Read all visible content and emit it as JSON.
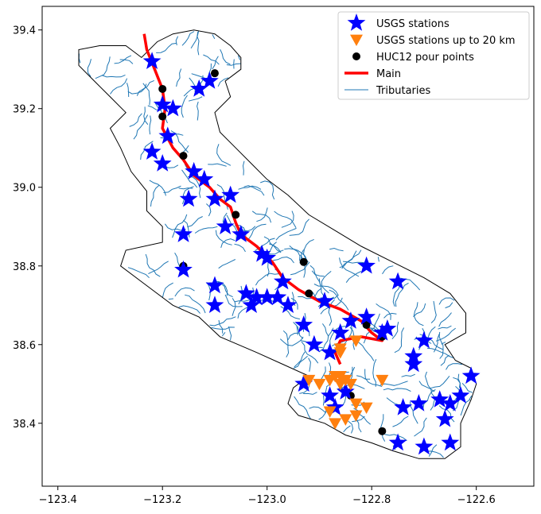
{
  "chart_data": {
    "type": "scatter",
    "xlim": [
      -123.43,
      -122.49
    ],
    "ylim": [
      38.24,
      39.46
    ],
    "x_ticks": [
      -123.4,
      -123.2,
      -123.0,
      -122.8,
      -122.6
    ],
    "y_ticks": [
      38.4,
      38.6,
      38.8,
      39.0,
      39.2,
      39.4
    ],
    "x_tick_labels": [
      "−123.4",
      "−123.2",
      "−123.0",
      "−122.8",
      "−122.6"
    ],
    "y_tick_labels": [
      "38.4",
      "38.6",
      "38.8",
      "39.0",
      "39.2",
      "39.4"
    ],
    "grid": false,
    "legend_position": "top-right",
    "legend": [
      {
        "label": "USGS stations",
        "marker": "star",
        "color": "#0000ff"
      },
      {
        "label": "USGS stations up to 20 km",
        "marker": "triangle-down",
        "color": "#ff7f0e"
      },
      {
        "label": "HUC12 pour points",
        "marker": "circle",
        "color": "#000000"
      },
      {
        "label": "Main",
        "marker": "line",
        "color": "#ff0000"
      },
      {
        "label": "Tributaries",
        "marker": "thin-line",
        "color": "#1f77b4"
      }
    ],
    "colors": {
      "stations": "#0000ff",
      "near": "#ff7f0e",
      "pour": "#000000",
      "main": "#ff0000",
      "tributaries": "#1f77b4",
      "boundary": "#000000"
    },
    "basin_boundary": [
      [
        -123.32,
        39.36
      ],
      [
        -123.27,
        39.36
      ],
      [
        -123.24,
        39.33
      ],
      [
        -123.21,
        39.37
      ],
      [
        -123.18,
        39.39
      ],
      [
        -123.14,
        39.4
      ],
      [
        -123.1,
        39.39
      ],
      [
        -123.07,
        39.36
      ],
      [
        -123.05,
        39.33
      ],
      [
        -123.05,
        39.3
      ],
      [
        -123.08,
        39.27
      ],
      [
        -123.07,
        39.23
      ],
      [
        -123.1,
        39.19
      ],
      [
        -123.09,
        39.14
      ],
      [
        -123.06,
        39.1
      ],
      [
        -123.03,
        39.06
      ],
      [
        -123.0,
        39.02
      ],
      [
        -122.96,
        38.98
      ],
      [
        -122.92,
        38.93
      ],
      [
        -122.87,
        38.89
      ],
      [
        -122.82,
        38.85
      ],
      [
        -122.76,
        38.81
      ],
      [
        -122.7,
        38.77
      ],
      [
        -122.65,
        38.73
      ],
      [
        -122.62,
        38.68
      ],
      [
        -122.62,
        38.63
      ],
      [
        -122.66,
        38.6
      ],
      [
        -122.64,
        38.56
      ],
      [
        -122.61,
        38.54
      ],
      [
        -122.6,
        38.5
      ],
      [
        -122.61,
        38.46
      ],
      [
        -122.63,
        38.4
      ],
      [
        -122.63,
        38.34
      ],
      [
        -122.66,
        38.31
      ],
      [
        -122.71,
        38.31
      ],
      [
        -122.76,
        38.33
      ],
      [
        -122.8,
        38.35
      ],
      [
        -122.85,
        38.37
      ],
      [
        -122.89,
        38.4
      ],
      [
        -122.94,
        38.42
      ],
      [
        -122.96,
        38.45
      ],
      [
        -122.95,
        38.49
      ],
      [
        -122.92,
        38.52
      ],
      [
        -122.97,
        38.55
      ],
      [
        -123.02,
        38.58
      ],
      [
        -123.09,
        38.62
      ],
      [
        -123.13,
        38.67
      ],
      [
        -123.18,
        38.7
      ],
      [
        -123.24,
        38.76
      ],
      [
        -123.28,
        38.8
      ],
      [
        -123.27,
        38.84
      ],
      [
        -123.2,
        38.86
      ],
      [
        -123.2,
        38.9
      ],
      [
        -123.23,
        38.94
      ],
      [
        -123.23,
        38.99
      ],
      [
        -123.26,
        39.04
      ],
      [
        -123.28,
        39.1
      ],
      [
        -123.3,
        39.15
      ],
      [
        -123.27,
        39.19
      ],
      [
        -123.3,
        39.23
      ],
      [
        -123.33,
        39.27
      ],
      [
        -123.36,
        39.31
      ],
      [
        -123.36,
        39.35
      ],
      [
        -123.32,
        39.36
      ]
    ],
    "main_stem": [
      [
        -123.235,
        39.39
      ],
      [
        -123.23,
        39.35
      ],
      [
        -123.215,
        39.3
      ],
      [
        -123.2,
        39.25
      ],
      [
        -123.195,
        39.2
      ],
      [
        -123.2,
        39.15
      ],
      [
        -123.18,
        39.1
      ],
      [
        -123.16,
        39.07
      ],
      [
        -123.14,
        39.03
      ],
      [
        -123.11,
        39.0
      ],
      [
        -123.09,
        38.97
      ],
      [
        -123.07,
        38.95
      ],
      [
        -123.06,
        38.91
      ],
      [
        -123.05,
        38.88
      ],
      [
        -123.02,
        38.85
      ],
      [
        -122.99,
        38.81
      ],
      [
        -122.97,
        38.77
      ],
      [
        -122.94,
        38.74
      ],
      [
        -122.9,
        38.71
      ],
      [
        -122.86,
        38.69
      ],
      [
        -122.82,
        38.66
      ],
      [
        -122.8,
        38.63
      ],
      [
        -122.78,
        38.61
      ],
      [
        -122.82,
        38.62
      ],
      [
        -122.86,
        38.61
      ],
      [
        -122.87,
        38.58
      ],
      [
        -122.86,
        38.55
      ]
    ],
    "usgs_stations": [
      [
        -123.22,
        39.32
      ],
      [
        -123.13,
        39.25
      ],
      [
        -123.11,
        39.27
      ],
      [
        -123.2,
        39.21
      ],
      [
        -123.18,
        39.2
      ],
      [
        -123.19,
        39.13
      ],
      [
        -123.22,
        39.09
      ],
      [
        -123.2,
        39.06
      ],
      [
        -123.14,
        39.04
      ],
      [
        -123.12,
        39.02
      ],
      [
        -123.15,
        38.97
      ],
      [
        -123.1,
        38.97
      ],
      [
        -123.07,
        38.98
      ],
      [
        -123.16,
        38.88
      ],
      [
        -123.08,
        38.9
      ],
      [
        -123.05,
        38.88
      ],
      [
        -123.01,
        38.83
      ],
      [
        -123.0,
        38.82
      ],
      [
        -123.16,
        38.79
      ],
      [
        -123.1,
        38.75
      ],
      [
        -123.04,
        38.73
      ],
      [
        -123.02,
        38.72
      ],
      [
        -123.0,
        38.72
      ],
      [
        -122.97,
        38.76
      ],
      [
        -122.98,
        38.72
      ],
      [
        -122.96,
        38.7
      ],
      [
        -123.03,
        38.7
      ],
      [
        -123.1,
        38.7
      ],
      [
        -122.89,
        38.71
      ],
      [
        -122.93,
        38.65
      ],
      [
        -122.91,
        38.6
      ],
      [
        -122.88,
        38.58
      ],
      [
        -122.86,
        38.63
      ],
      [
        -122.84,
        38.66
      ],
      [
        -122.81,
        38.67
      ],
      [
        -122.78,
        38.63
      ],
      [
        -122.77,
        38.64
      ],
      [
        -122.81,
        38.8
      ],
      [
        -122.75,
        38.76
      ],
      [
        -122.72,
        38.57
      ],
      [
        -122.7,
        38.61
      ],
      [
        -122.72,
        38.55
      ],
      [
        -122.74,
        38.44
      ],
      [
        -122.71,
        38.45
      ],
      [
        -122.67,
        38.46
      ],
      [
        -122.65,
        38.45
      ],
      [
        -122.63,
        38.47
      ],
      [
        -122.61,
        38.52
      ],
      [
        -122.66,
        38.41
      ],
      [
        -122.65,
        38.35
      ],
      [
        -122.7,
        38.34
      ],
      [
        -122.75,
        38.35
      ],
      [
        -122.93,
        38.5
      ],
      [
        -122.88,
        38.47
      ],
      [
        -122.87,
        38.44
      ],
      [
        -122.85,
        38.48
      ]
    ],
    "usgs_stations_20km": [
      [
        -122.86,
        38.59
      ],
      [
        -122.86,
        38.58
      ],
      [
        -122.83,
        38.61
      ],
      [
        -122.92,
        38.51
      ],
      [
        -122.9,
        38.5
      ],
      [
        -122.88,
        38.51
      ],
      [
        -122.86,
        38.52
      ],
      [
        -122.85,
        38.51
      ],
      [
        -122.84,
        38.5
      ],
      [
        -122.88,
        38.43
      ],
      [
        -122.87,
        38.4
      ],
      [
        -122.85,
        38.41
      ],
      [
        -122.83,
        38.42
      ],
      [
        -122.83,
        38.45
      ],
      [
        -122.81,
        38.44
      ],
      [
        -122.78,
        38.51
      ],
      [
        -122.86,
        38.5
      ],
      [
        -122.87,
        38.52
      ]
    ],
    "huc12_pour_points": [
      [
        -123.2,
        39.25
      ],
      [
        -123.1,
        39.29
      ],
      [
        -123.2,
        39.18
      ],
      [
        -123.16,
        39.08
      ],
      [
        -123.06,
        38.93
      ],
      [
        -122.93,
        38.81
      ],
      [
        -123.16,
        38.8
      ],
      [
        -122.92,
        38.73
      ],
      [
        -122.81,
        38.65
      ],
      [
        -122.78,
        38.62
      ],
      [
        -122.84,
        38.47
      ],
      [
        -122.78,
        38.38
      ]
    ]
  }
}
